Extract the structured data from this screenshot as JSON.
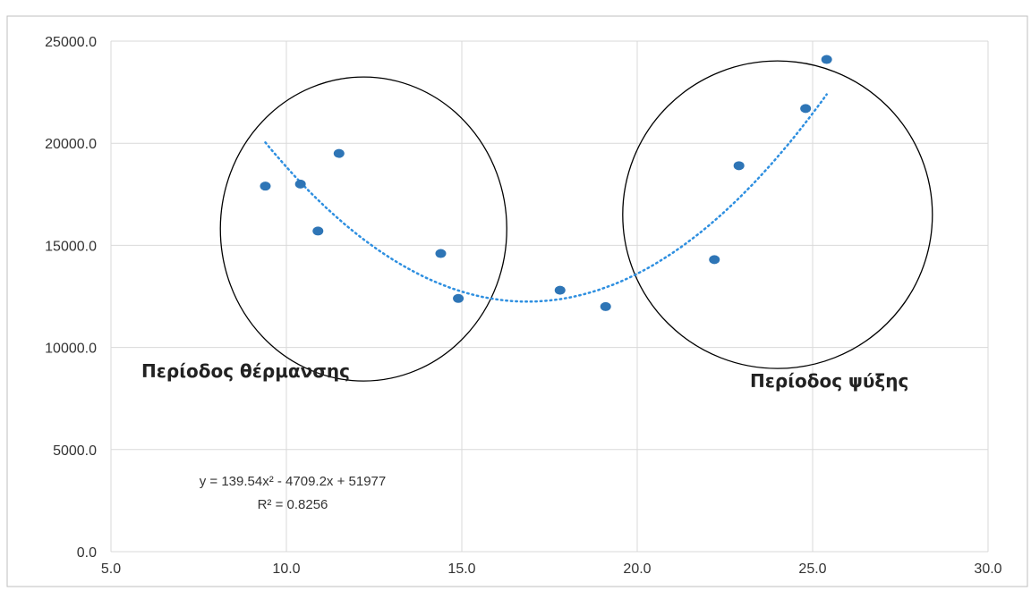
{
  "chart_data": {
    "type": "scatter",
    "xlim": [
      5.0,
      30.0
    ],
    "ylim": [
      0.0,
      25000.0
    ],
    "x_ticks": [
      "5.0",
      "10.0",
      "15.0",
      "20.0",
      "25.0",
      "30.0"
    ],
    "y_ticks": [
      "0.0",
      "5000.0",
      "10000.0",
      "15000.0",
      "20000.0",
      "25000.0"
    ],
    "grid": true,
    "points": [
      {
        "x": 9.4,
        "y": 17900
      },
      {
        "x": 10.4,
        "y": 18000
      },
      {
        "x": 10.9,
        "y": 15700
      },
      {
        "x": 11.5,
        "y": 19500
      },
      {
        "x": 14.4,
        "y": 14600
      },
      {
        "x": 14.9,
        "y": 12400
      },
      {
        "x": 17.8,
        "y": 12800
      },
      {
        "x": 19.1,
        "y": 12000
      },
      {
        "x": 22.2,
        "y": 14300
      },
      {
        "x": 22.9,
        "y": 18900
      },
      {
        "x": 24.8,
        "y": 21700
      },
      {
        "x": 25.4,
        "y": 24100
      }
    ],
    "trendline": {
      "type": "polynomial",
      "coefficients": [
        139.54,
        -4709.2,
        51977
      ],
      "x_range": [
        9.4,
        25.4
      ],
      "equation_text": "y = 139.54x² - 4709.2x + 51977",
      "r2_text": "R² = 0.8256"
    },
    "annotations": [
      {
        "label": "Περίοδος θέρμανσης",
        "circle_center": [
          12.2,
          15800
        ]
      },
      {
        "label": "Περίοδος ψύξης",
        "circle_center": [
          24.0,
          16500
        ]
      }
    ],
    "colors": {
      "marker": "#2E75B6",
      "trendline": "#2E8FE0",
      "grid": "#D9D9D9",
      "circle": "#000000"
    }
  }
}
